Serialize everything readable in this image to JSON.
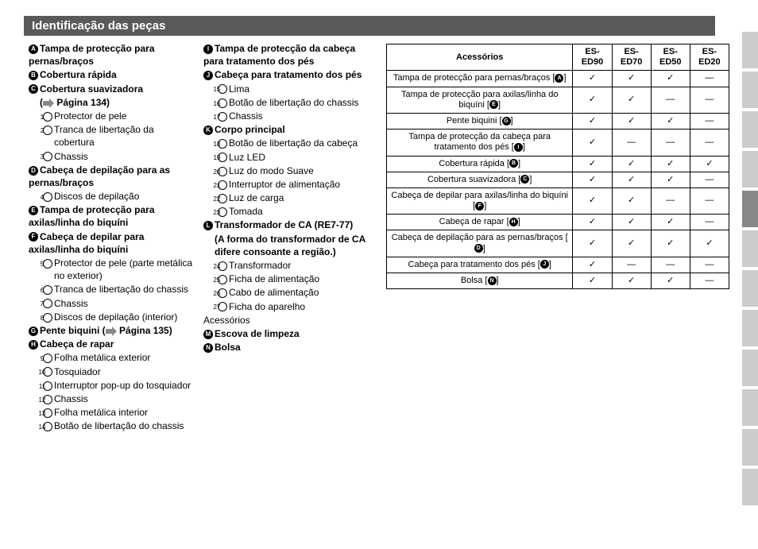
{
  "header": {
    "title": "Identificação das peças"
  },
  "pageRef1": "Página 134",
  "pageRef2": "Página 135",
  "col1": {
    "A": "Tampa de protecção para pernas/braços",
    "B": "Cobertura rápida",
    "C": "Cobertura suavizadora",
    "c1": "Protector de pele",
    "c2": "Tranca de libertação da cobertura",
    "c3": "Chassis",
    "D": "Cabeça de depilação para as pernas/braços",
    "d4": "Discos de depilação",
    "E": "Tampa de protecção para axilas/linha do biquíni",
    "F": "Cabeça de depilar para axilas/linha do biquíni",
    "f5": "Protector de pele (parte metálica no exterior)",
    "f6": "Tranca de libertação do chassis",
    "f7": "Chassis",
    "f8": "Discos de depilação (interior)",
    "G": "Pente biquini",
    "H": "Cabeça de rapar",
    "h9": "Folha metálica exterior",
    "h10": "Tosquiador",
    "h11": "Interruptor pop-up do tosquiador",
    "h12": "Chassis",
    "h13": "Folha metálica interior",
    "h14": "Botão de libertação do chassis"
  },
  "col2": {
    "I": "Tampa de protecção da cabeça para tratamento dos pés",
    "J": "Cabeça para tratamento dos pés",
    "j15": "Lima",
    "j16": "Botão de libertação do chassis",
    "j17": "Chassis",
    "K": "Corpo principal",
    "k18": "Botão de libertação da cabeça",
    "k19": "Luz LED",
    "k20": "Luz do modo Suave",
    "k21": "Interruptor de alimentação",
    "k22": "Luz de carga",
    "k23": "Tomada",
    "L": "Transformador de CA (RE7-77)",
    "Lnote": "(A forma do transformador de CA difere consoante a região.)",
    "l24": "Transformador",
    "l25": "Ficha de alimentação",
    "l26": "Cabo de alimentação",
    "l27": "Ficha do aparelho",
    "acessorios": "Acessórios",
    "M": "Escova de limpeza",
    "N": "Bolsa"
  },
  "table": {
    "head": [
      "Acessórios",
      "ES-ED90",
      "ES-ED70",
      "ES-ED50",
      "ES-ED20"
    ],
    "rows": [
      {
        "label": "Tampa de protecção para pernas/braços",
        "ref": "A",
        "v": [
          "✓",
          "✓",
          "✓",
          "—"
        ]
      },
      {
        "label": "Tampa de protecção para axilas/linha do biquíni",
        "ref": "E",
        "v": [
          "✓",
          "✓",
          "—",
          "—"
        ]
      },
      {
        "label": "Pente biquini",
        "ref": "G",
        "v": [
          "✓",
          "✓",
          "✓",
          "—"
        ]
      },
      {
        "label": "Tampa de protecção da cabeça para tratamento dos pés",
        "ref": "I",
        "v": [
          "✓",
          "—",
          "—",
          "—"
        ]
      },
      {
        "label": "Cobertura rápida",
        "ref": "B",
        "v": [
          "✓",
          "✓",
          "✓",
          "✓"
        ]
      },
      {
        "label": "Cobertura suavizadora",
        "ref": "C",
        "v": [
          "✓",
          "✓",
          "✓",
          "—"
        ]
      },
      {
        "label": "Cabeça de depilar para axilas/linha do biquíni",
        "ref": "F",
        "v": [
          "✓",
          "✓",
          "—",
          "—"
        ]
      },
      {
        "label": "Cabeça de rapar",
        "ref": "H",
        "v": [
          "✓",
          "✓",
          "✓",
          "—"
        ]
      },
      {
        "label": "Cabeça de depilação para as pernas/braços",
        "ref": "D",
        "v": [
          "✓",
          "✓",
          "✓",
          "✓"
        ]
      },
      {
        "label": "Cabeça para tratamento dos pés",
        "ref": "J",
        "v": [
          "✓",
          "—",
          "—",
          "—"
        ]
      },
      {
        "label": "Bolsa",
        "ref": "N",
        "v": [
          "✓",
          "✓",
          "✓",
          "—"
        ]
      }
    ]
  },
  "colors": {
    "header_bg": "#5a5a5a",
    "tab": "#ccc",
    "tab_active": "#888"
  }
}
